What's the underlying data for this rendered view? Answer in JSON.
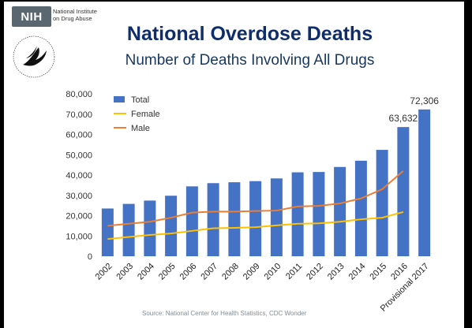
{
  "header": {
    "logo_text": "NIH",
    "institute_name": [
      "National Institute",
      "on Drug Abuse"
    ],
    "seal_icon": "hhs-eagle-seal-icon"
  },
  "title": "National Overdose Deaths",
  "subtitle": "Number of Deaths Involving All Drugs",
  "source": "Source: National Center for Health Statistics, CDC Wonder",
  "colors": {
    "total": "#4472c4",
    "female": "#ffc000",
    "male": "#ed7d31",
    "title": "#0f2d6b"
  },
  "chart_data": {
    "type": "bar",
    "categories": [
      "2002",
      "2003",
      "2004",
      "2005",
      "2006",
      "2007",
      "2008",
      "2009",
      "2010",
      "2011",
      "2012",
      "2013",
      "2014",
      "2015",
      "2016",
      "Provisional 2017"
    ],
    "series": [
      {
        "name": "Total",
        "type": "bar",
        "values": [
          23518,
          25785,
          27424,
          29813,
          34425,
          36010,
          36450,
          37004,
          38329,
          41340,
          41502,
          43982,
          47055,
          52404,
          63632,
          72306
        ]
      },
      {
        "name": "Female",
        "type": "line",
        "values": [
          8500,
          9500,
          10500,
          11200,
          12500,
          13800,
          14000,
          14300,
          15200,
          16000,
          16200,
          17000,
          18200,
          19000,
          21800,
          null
        ]
      },
      {
        "name": "Male",
        "type": "line",
        "values": [
          15000,
          16000,
          17000,
          19000,
          21500,
          22000,
          22000,
          22300,
          22500,
          24500,
          24800,
          26000,
          28500,
          33000,
          42000,
          null
        ]
      }
    ],
    "data_labels": [
      {
        "category": "2016",
        "text": "63,632"
      },
      {
        "category": "Provisional 2017",
        "text": "72,306"
      }
    ],
    "ylim": [
      0,
      80000
    ],
    "yticks": [
      "0",
      "10,000",
      "20,000",
      "30,000",
      "40,000",
      "50,000",
      "60,000",
      "70,000",
      "80,000"
    ],
    "xlabel": "",
    "ylabel": "",
    "legend_position": "top-left",
    "grid": false
  }
}
